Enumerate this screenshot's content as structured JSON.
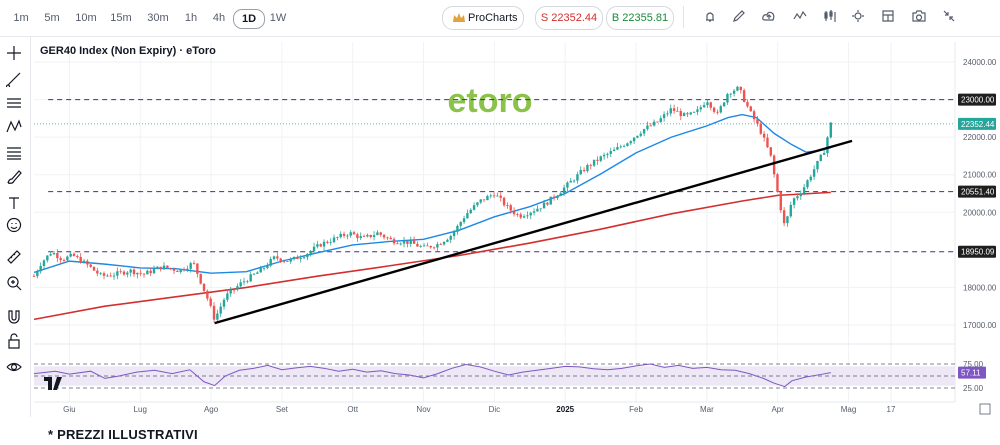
{
  "toolbar": {
    "timeframes": [
      "1m",
      "5m",
      "10m",
      "15m",
      "30m",
      "1h",
      "4h",
      "1D",
      "1W"
    ],
    "active_timeframe": "1D",
    "procharts_label": "ProCharts",
    "sell_label": "S 22352.44",
    "buy_label": "B 22355.81",
    "icons": [
      "alert-icon",
      "pencil-icon",
      "cloud-icon",
      "indicator-icon",
      "candle-type-icon",
      "gear-icon",
      "layout-icon",
      "camera-icon",
      "collapse-icon"
    ]
  },
  "sidebar": {
    "icons": [
      "crosshair-icon",
      "trendline-icon",
      "horizontal-lines-icon",
      "pattern-icon",
      "fib-icon",
      "brush-icon",
      "text-icon",
      "emoji-icon",
      "ruler-icon",
      "zoom-in-icon",
      "magnet-icon",
      "lock-icon",
      "eye-icon"
    ]
  },
  "chart": {
    "title": "GER40 Index (Non Expiry) · eToro",
    "watermark": "etoro",
    "footnote": "* PREZZI ILLUSTRATIVI",
    "tradingview_mark": "TV"
  },
  "chart_data": {
    "type": "candlestick",
    "instrument": "GER40 Index (Non Expiry)",
    "source": "eToro",
    "timeframe": "1D",
    "price_axis": {
      "ticks": [
        24000,
        23000,
        22000,
        21000,
        20000,
        18000,
        17000
      ],
      "ylim": [
        16800,
        24250
      ]
    },
    "x_axis": {
      "ticks": [
        {
          "label": "Giu",
          "t": 0.5
        },
        {
          "label": "Lug",
          "t": 1.5
        },
        {
          "label": "Ago",
          "t": 2.5
        },
        {
          "label": "Set",
          "t": 3.5
        },
        {
          "label": "Ott",
          "t": 4.5
        },
        {
          "label": "Nov",
          "t": 5.5
        },
        {
          "label": "Dic",
          "t": 6.5
        },
        {
          "label": "2025",
          "t": 7.5
        },
        {
          "label": "Feb",
          "t": 8.5
        },
        {
          "label": "Mar",
          "t": 9.5
        },
        {
          "label": "Apr",
          "t": 10.5
        },
        {
          "label": "Mag",
          "t": 11.5
        },
        {
          "label": "17",
          "t": 12.1
        }
      ]
    },
    "price_path": [
      [
        0.0,
        18300
      ],
      [
        0.1,
        18650
      ],
      [
        0.25,
        18950
      ],
      [
        0.4,
        18750
      ],
      [
        0.55,
        18850
      ],
      [
        0.75,
        18600
      ],
      [
        0.95,
        18300
      ],
      [
        1.15,
        18350
      ],
      [
        1.35,
        18450
      ],
      [
        1.55,
        18350
      ],
      [
        1.8,
        18550
      ],
      [
        2.05,
        18450
      ],
      [
        2.25,
        18650
      ],
      [
        2.45,
        17700
      ],
      [
        2.55,
        17150
      ],
      [
        2.7,
        17750
      ],
      [
        2.95,
        18150
      ],
      [
        3.2,
        18450
      ],
      [
        3.4,
        18800
      ],
      [
        3.6,
        18700
      ],
      [
        3.85,
        18900
      ],
      [
        4.05,
        19150
      ],
      [
        4.25,
        19300
      ],
      [
        4.45,
        19450
      ],
      [
        4.65,
        19300
      ],
      [
        4.85,
        19450
      ],
      [
        5.05,
        19250
      ],
      [
        5.3,
        19200
      ],
      [
        5.5,
        19050
      ],
      [
        5.7,
        19150
      ],
      [
        5.9,
        19400
      ],
      [
        6.1,
        19950
      ],
      [
        6.3,
        20300
      ],
      [
        6.5,
        20500
      ],
      [
        6.7,
        20100
      ],
      [
        6.85,
        19900
      ],
      [
        7.05,
        20050
      ],
      [
        7.2,
        20200
      ],
      [
        7.4,
        20500
      ],
      [
        7.6,
        20850
      ],
      [
        7.8,
        21200
      ],
      [
        8.0,
        21450
      ],
      [
        8.2,
        21650
      ],
      [
        8.4,
        21900
      ],
      [
        8.6,
        22200
      ],
      [
        8.8,
        22400
      ],
      [
        9.0,
        22750
      ],
      [
        9.2,
        22550
      ],
      [
        9.35,
        22650
      ],
      [
        9.5,
        23000
      ],
      [
        9.65,
        22600
      ],
      [
        9.8,
        23200
      ],
      [
        9.95,
        23300
      ],
      [
        10.1,
        22700
      ],
      [
        10.25,
        22200
      ],
      [
        10.4,
        21500
      ],
      [
        10.5,
        20500
      ],
      [
        10.6,
        19600
      ],
      [
        10.7,
        20300
      ],
      [
        10.85,
        20600
      ],
      [
        11.0,
        21100
      ],
      [
        11.15,
        21600
      ],
      [
        11.25,
        22352
      ]
    ],
    "lines": {
      "ma_short_blue": [
        [
          0.0,
          18400
        ],
        [
          0.5,
          18700
        ],
        [
          1.0,
          18620
        ],
        [
          1.5,
          18520
        ],
        [
          2.0,
          18500
        ],
        [
          2.5,
          18380
        ],
        [
          3.0,
          18420
        ],
        [
          3.5,
          18700
        ],
        [
          4.0,
          18920
        ],
        [
          4.5,
          19130
        ],
        [
          5.0,
          19220
        ],
        [
          5.5,
          19280
        ],
        [
          6.0,
          19520
        ],
        [
          6.5,
          19880
        ],
        [
          7.0,
          20150
        ],
        [
          7.5,
          20500
        ],
        [
          8.0,
          21020
        ],
        [
          8.5,
          21580
        ],
        [
          9.0,
          22000
        ],
        [
          9.5,
          22300
        ],
        [
          9.8,
          22520
        ],
        [
          10.0,
          22600
        ],
        [
          10.2,
          22520
        ],
        [
          10.45,
          22100
        ],
        [
          10.7,
          21800
        ],
        [
          10.9,
          21600
        ],
        [
          11.1,
          21650
        ],
        [
          11.25,
          21720
        ]
      ],
      "ma_long_red": [
        [
          0.0,
          17150
        ],
        [
          1.0,
          17500
        ],
        [
          2.0,
          17750
        ],
        [
          3.0,
          18000
        ],
        [
          4.0,
          18300
        ],
        [
          5.0,
          18570
        ],
        [
          6.0,
          18850
        ],
        [
          7.0,
          19180
        ],
        [
          8.0,
          19550
        ],
        [
          9.0,
          19960
        ],
        [
          10.0,
          20300
        ],
        [
          10.5,
          20450
        ],
        [
          11.25,
          20530
        ]
      ],
      "trendline": [
        [
          2.55,
          17050
        ],
        [
          11.55,
          21900
        ]
      ]
    },
    "horizontal_levels": [
      23000,
      20551.4,
      18950.09
    ],
    "current_price": 22352.44,
    "price_labels": [
      "23000.00",
      "22352.44",
      "20551.40",
      "18950.09"
    ],
    "rsi": {
      "ticks": [
        75.0,
        25.0
      ],
      "last": 57.11,
      "last_label": "57.11",
      "band": [
        30,
        70
      ],
      "path": [
        [
          0.0,
          55
        ],
        [
          0.3,
          60
        ],
        [
          0.5,
          54
        ],
        [
          0.8,
          60
        ],
        [
          1.0,
          45
        ],
        [
          1.2,
          50
        ],
        [
          1.45,
          58
        ],
        [
          1.7,
          62
        ],
        [
          1.95,
          55
        ],
        [
          2.2,
          63
        ],
        [
          2.4,
          38
        ],
        [
          2.55,
          30
        ],
        [
          2.7,
          50
        ],
        [
          2.9,
          62
        ],
        [
          3.1,
          66
        ],
        [
          3.3,
          72
        ],
        [
          3.5,
          63
        ],
        [
          3.7,
          67
        ],
        [
          3.9,
          70
        ],
        [
          4.1,
          66
        ],
        [
          4.3,
          60
        ],
        [
          4.5,
          64
        ],
        [
          4.7,
          58
        ],
        [
          4.9,
          61
        ],
        [
          5.1,
          55
        ],
        [
          5.3,
          52
        ],
        [
          5.5,
          46
        ],
        [
          5.7,
          55
        ],
        [
          5.9,
          66
        ],
        [
          6.1,
          74
        ],
        [
          6.3,
          69
        ],
        [
          6.5,
          60
        ],
        [
          6.7,
          52
        ],
        [
          6.9,
          58
        ],
        [
          7.1,
          62
        ],
        [
          7.3,
          66
        ],
        [
          7.5,
          70
        ],
        [
          7.7,
          69
        ],
        [
          7.9,
          65
        ],
        [
          8.1,
          63
        ],
        [
          8.3,
          66
        ],
        [
          8.5,
          71
        ],
        [
          8.7,
          75
        ],
        [
          8.9,
          68
        ],
        [
          9.1,
          72
        ],
        [
          9.3,
          66
        ],
        [
          9.5,
          68
        ],
        [
          9.7,
          63
        ],
        [
          9.9,
          62
        ],
        [
          10.1,
          55
        ],
        [
          10.3,
          45
        ],
        [
          10.45,
          35
        ],
        [
          10.6,
          28
        ],
        [
          10.7,
          40
        ],
        [
          10.9,
          48
        ],
        [
          11.1,
          53
        ],
        [
          11.25,
          57
        ]
      ]
    },
    "colors": {
      "up": "#26a69a",
      "down": "#ef5350",
      "ma_short": "#1e88e5",
      "ma_long": "#d32f2f",
      "trendline": "#000000",
      "levels": "#4a2a8a",
      "rsi_line": "#7e57c2",
      "rsi_band": "#ede7f6",
      "current_price_line": "#26a69a",
      "watermark": "#8bc34a"
    }
  }
}
